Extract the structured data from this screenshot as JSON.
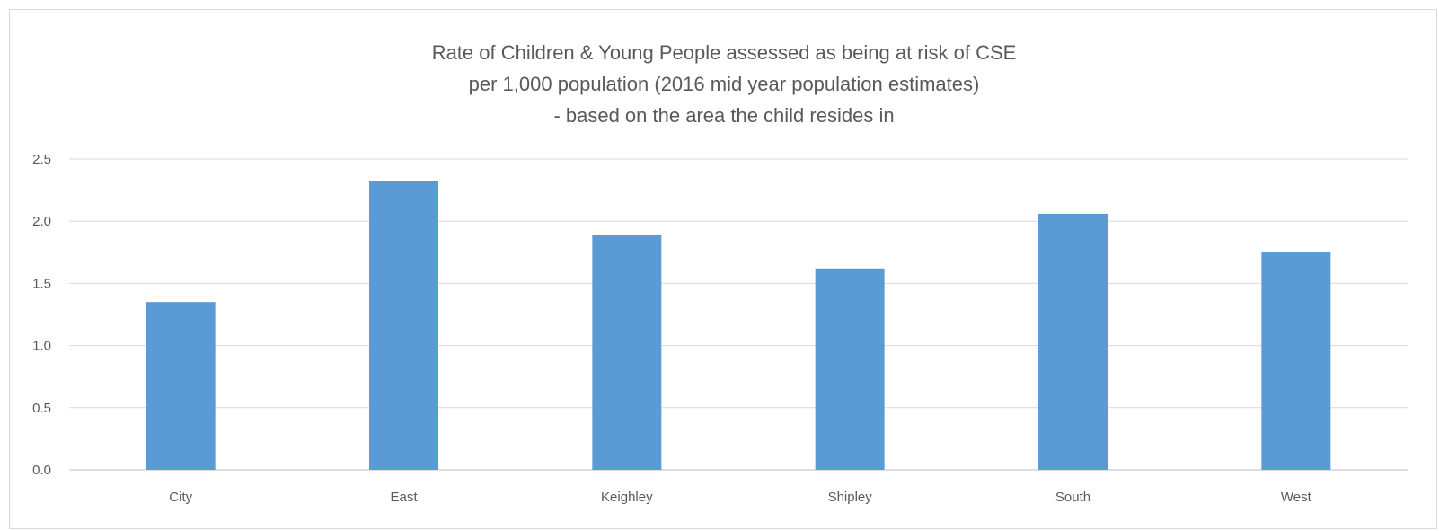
{
  "chart_data": {
    "type": "bar",
    "title": [
      "Rate of Children & Young People assessed as being at risk of CSE",
      "per 1,000 population (2016 mid year population estimates)",
      "- based on the area the child resides in"
    ],
    "categories": [
      "City",
      "East",
      "Keighley",
      "Shipley",
      "South",
      "West"
    ],
    "values": [
      1.35,
      2.32,
      1.89,
      1.62,
      2.06,
      1.75
    ],
    "ylim": [
      0,
      2.5
    ],
    "yticks": [
      "0.0",
      "0.5",
      "1.0",
      "1.5",
      "2.0",
      "2.5"
    ],
    "grid": true,
    "legend": "none",
    "colors": {
      "bar": "#5b9bd5",
      "grid": "#d9d9d9",
      "axis": "#bfbfbf",
      "text": "#595959"
    }
  }
}
